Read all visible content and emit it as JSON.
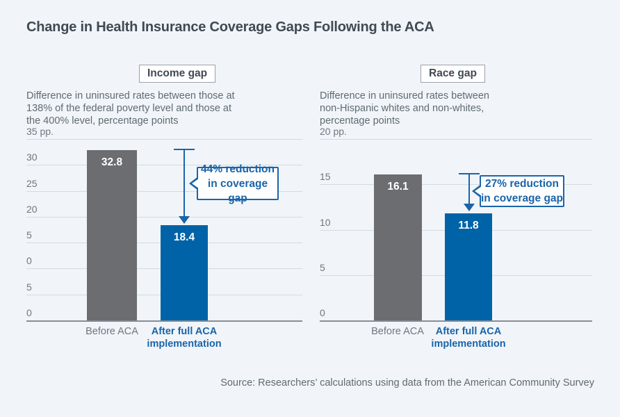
{
  "page": {
    "title": "Change in Health Insurance Coverage Gaps Following the ACA",
    "source": "Source: Researchers’ calculations using data from the American Community Survey"
  },
  "colors": {
    "background": "#f1f5f9",
    "bar_gray": "#6b6d70",
    "bar_blue": "#0063a7",
    "accent_blue": "#1a64a9",
    "gridline": "#d3dae0",
    "axis_line": "#868d94",
    "title_text": "#3f4a52",
    "muted_text": "#5f6a72"
  },
  "chart_data": [
    {
      "type": "bar",
      "title_badge": "Income gap",
      "subtitle_lines": [
        "Difference in uninsured rates between those at",
        "138% of the federal poverty level and those at",
        "the 400% level, percentage points"
      ],
      "unit_label": "35 pp.",
      "ylim": [
        0,
        35
      ],
      "axis_ticks_displayed": [
        "35 pp.",
        "30",
        "25",
        "20",
        "5",
        "0",
        "5",
        "0"
      ],
      "grid": true,
      "categories": [
        "Before ACA",
        "After full ACA implementation"
      ],
      "series": [
        {
          "name": "Before ACA",
          "color": "#6b6d70",
          "values": [
            32.8
          ]
        },
        {
          "name": "After full ACA implementation",
          "color": "#0063a7",
          "values": [
            18.4
          ]
        }
      ],
      "values": [
        32.8,
        18.4
      ],
      "bar_labels": [
        "32.8",
        "18.4"
      ],
      "annotation_lines": [
        "44% reduction",
        "in coverage gap"
      ],
      "x_label_lines": [
        [
          "Before ACA"
        ],
        [
          "After full ACA",
          "implementation"
        ]
      ]
    },
    {
      "type": "bar",
      "title_badge": "Race gap",
      "subtitle_lines": [
        "Difference in uninsured rates between",
        "non-Hispanic whites and non-whites,",
        "percentage points"
      ],
      "unit_label": "20 pp.",
      "ylim": [
        0,
        20
      ],
      "axis_ticks_displayed": [
        "20 pp.",
        "15",
        "10",
        "5",
        "0"
      ],
      "grid": true,
      "categories": [
        "Before ACA",
        "After full ACA implementation"
      ],
      "series": [
        {
          "name": "Before ACA",
          "color": "#6b6d70",
          "values": [
            16.1
          ]
        },
        {
          "name": "After full ACA implementation",
          "color": "#0063a7",
          "values": [
            11.8
          ]
        }
      ],
      "values": [
        16.1,
        11.8
      ],
      "bar_labels": [
        "16.1",
        "11.8"
      ],
      "annotation_lines": [
        "27% reduction",
        "in coverage gap"
      ],
      "x_label_lines": [
        [
          "Before ACA"
        ],
        [
          "After full ACA",
          "implementation"
        ]
      ]
    }
  ]
}
